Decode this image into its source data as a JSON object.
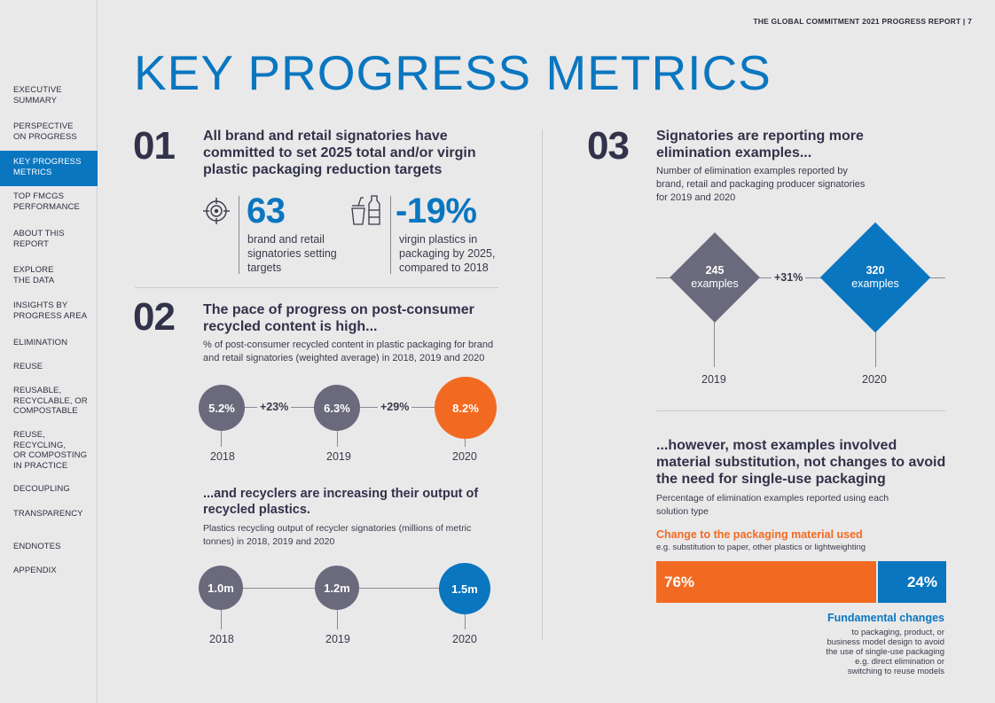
{
  "header": {
    "report_ref": "THE GLOBAL COMMITMENT 2021 PROGRESS REPORT  |  7",
    "title": "KEY PROGRESS METRICS"
  },
  "sidebar": {
    "items": [
      {
        "label": "EXECUTIVE\nSUMMARY",
        "active": false
      },
      {
        "label": "PERSPECTIVE\nON PROGRESS",
        "active": false
      },
      {
        "label": "KEY PROGRESS\nMETRICS",
        "active": true
      },
      {
        "label": "TOP FMCGS\nPERFORMANCE",
        "active": false
      },
      {
        "label": "ABOUT THIS\nREPORT",
        "active": false
      },
      {
        "label": "EXPLORE\nTHE DATA",
        "active": false
      },
      {
        "label": "INSIGHTS BY\nPROGRESS AREA",
        "active": false
      },
      {
        "label": "ELIMINATION",
        "active": false
      },
      {
        "label": "REUSE",
        "active": false
      },
      {
        "label": "REUSABLE,\nRECYCLABLE, OR\nCOMPOSTABLE",
        "active": false
      },
      {
        "label": "REUSE,\nRECYCLING,\nOR COMPOSTING\nIN PRACTICE",
        "active": false
      },
      {
        "label": "DECOUPLING",
        "active": false
      },
      {
        "label": "TRANSPARENCY",
        "active": false
      },
      {
        "label": "ENDNOTES",
        "active": false
      },
      {
        "label": "APPENDIX",
        "active": false
      }
    ]
  },
  "section01": {
    "number": "01",
    "heading": "All brand and retail signatories have committed to set 2025 total and/or virgin plastic packaging reduction targets",
    "stat1": {
      "value": "63",
      "desc": "brand and retail signatories setting targets",
      "icon": "target-icon"
    },
    "stat2": {
      "value": "-19%",
      "desc": "virgin plastics in packaging by 2025, compared to 2018",
      "icon": "plastic-bottle-icon"
    }
  },
  "section02": {
    "number": "02",
    "heading": "The pace of progress on post-consumer recycled content is high...",
    "subtitle": "% of post-consumer recycled content in plastic packaging for brand and retail signatories (weighted average) in 2018, 2019 and 2020",
    "circles": [
      {
        "value": "5.2%",
        "year": "2018"
      },
      {
        "value": "6.3%",
        "year": "2019"
      },
      {
        "value": "8.2%",
        "year": "2020"
      }
    ],
    "growth": [
      "+23%",
      "+29%"
    ],
    "recyclers_heading": "...and recyclers are increasing their output of recycled plastics.",
    "recyclers_subtitle": "Plastics recycling output of recycler signatories (millions of metric tonnes) in 2018, 2019 and 2020",
    "output": [
      {
        "value": "1.0m",
        "year": "2018"
      },
      {
        "value": "1.2m",
        "year": "2019"
      },
      {
        "value": "1.5m",
        "year": "2020"
      }
    ]
  },
  "section03": {
    "number": "03",
    "heading": "Signatories are reporting more elimination examples...",
    "subtitle": "Number of elimination examples reported by brand, retail and packaging producer signatories for 2019 and 2020",
    "examples": [
      {
        "value": "245",
        "unit": "examples",
        "year": "2019"
      },
      {
        "value": "320",
        "unit": "examples",
        "year": "2020"
      }
    ],
    "growth": "+31%",
    "however_heading": "...however, most examples involved material substitution, not changes to avoid the need for single-use packaging",
    "however_subtitle": "Percentage of elimination examples reported using each solution type",
    "material_label": "Change to the packaging material used",
    "material_note": "e.g. substitution to paper, other plastics or lightweighting",
    "bar": {
      "material_pct": "76%",
      "fundamental_pct": "24%"
    },
    "fundamental_label": "Fundamental changes",
    "fundamental_note": "to packaging, product, or\nbusiness model design to avoid\nthe use of single-use packaging\ne.g. direct elimination or\nswitching to reuse models"
  },
  "colors": {
    "blue": "#0a76c0",
    "orange": "#f26a21",
    "grey": "#6a6a7c",
    "dark": "#32324a"
  }
}
